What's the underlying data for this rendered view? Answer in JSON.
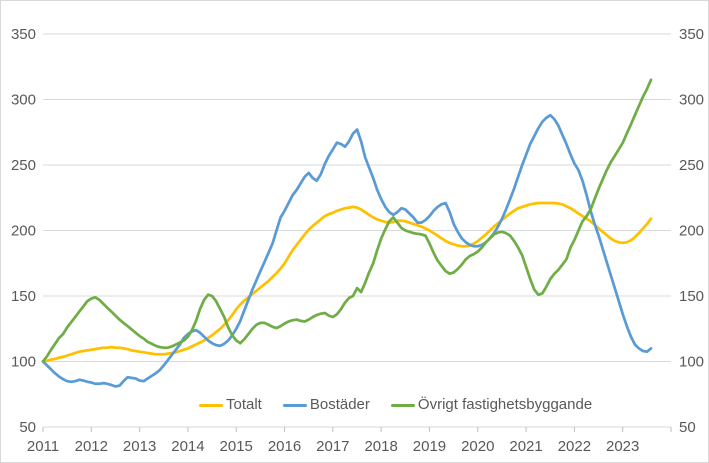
{
  "chart_data": {
    "type": "line",
    "title": "",
    "x_unit": "month",
    "x_range": [
      "2011-01",
      "2023-08"
    ],
    "x_tick_labels": [
      "2011",
      "2012",
      "2013",
      "2014",
      "2015",
      "2016",
      "2017",
      "2018",
      "2019",
      "2020",
      "2021",
      "2022",
      "2023"
    ],
    "y_axis": {
      "min": 50,
      "max": 350,
      "step": 50,
      "tick_labels": [
        "350",
        "300",
        "250",
        "200",
        "150",
        "100",
        "50"
      ],
      "label_sides": "both"
    },
    "grid": true,
    "legend_position": "bottom",
    "series": [
      {
        "name": "Totalt",
        "color": "#FFC000",
        "values": [
          100,
          100.5,
          101.5,
          102,
          103,
          103.5,
          104.5,
          105.5,
          106.5,
          107.5,
          108,
          108.5,
          109,
          109.5,
          110,
          110.5,
          110.5,
          111,
          110.5,
          110.5,
          110,
          109.5,
          108.5,
          108,
          107.5,
          107,
          106.5,
          106,
          105.5,
          105.5,
          105.5,
          106,
          106.5,
          107,
          108,
          109,
          110,
          111.5,
          113,
          114.5,
          116,
          118,
          120,
          122.5,
          125,
          128,
          131.5,
          135.5,
          140,
          143.5,
          146.5,
          149,
          151.5,
          154,
          156.5,
          159,
          161.5,
          164.5,
          167.5,
          171,
          175,
          180,
          185,
          189,
          193,
          197,
          200.5,
          203.5,
          206,
          208.5,
          211,
          212.5,
          213.5,
          215,
          216,
          217,
          217.5,
          218,
          217.5,
          216,
          214,
          212,
          210,
          208.5,
          207.5,
          206.5,
          206,
          206.5,
          207.5,
          207.5,
          207,
          206,
          205,
          204,
          203,
          201.5,
          200,
          198,
          196,
          194,
          192,
          190.5,
          189.5,
          188.5,
          188,
          188,
          188.5,
          190,
          192,
          194.5,
          197,
          200,
          203,
          205.5,
          208,
          210.5,
          213,
          215,
          217,
          218,
          219,
          220,
          220.5,
          221,
          221,
          221,
          221,
          221,
          220.5,
          220,
          218.5,
          217,
          215,
          213,
          211,
          209,
          207,
          204.5,
          201.5,
          199,
          196.5,
          194,
          192,
          191,
          190.5,
          191,
          192.5,
          195,
          198,
          201.5,
          205,
          209
        ]
      },
      {
        "name": "Bostäder",
        "color": "#5B9BD5",
        "values": [
          100,
          97,
          94,
          91,
          88.5,
          86.5,
          85,
          84.5,
          85,
          86,
          85.5,
          84.5,
          84,
          83,
          83,
          83.5,
          83,
          82,
          81,
          81.5,
          85,
          88,
          87.5,
          87,
          85.5,
          85,
          87,
          89,
          91,
          93.5,
          97,
          101,
          105,
          109,
          113,
          118,
          121,
          123,
          124,
          122,
          119,
          116,
          114,
          112.5,
          112,
          113.5,
          116,
          120,
          125,
          131,
          139,
          147,
          155,
          162,
          169,
          176,
          183,
          190,
          200,
          210,
          215,
          221,
          227,
          231,
          236,
          241,
          244,
          240,
          238,
          243,
          251,
          257,
          262,
          267,
          266,
          264,
          268,
          274,
          277,
          268,
          256,
          248,
          240,
          231,
          224,
          218,
          214,
          212,
          214,
          217,
          216,
          213,
          210,
          206,
          206,
          208,
          211,
          215,
          218,
          220,
          221,
          214,
          205,
          199,
          194,
          191,
          189,
          188,
          188,
          189,
          191,
          194,
          198,
          203,
          209,
          216,
          224,
          232,
          241,
          250,
          258,
          266,
          272,
          278,
          283,
          286,
          288,
          285,
          280,
          273,
          266,
          258,
          251,
          246,
          238,
          227,
          215,
          205,
          196,
          186,
          176,
          166,
          156,
          146,
          136,
          127,
          119,
          113,
          110,
          108,
          107.5,
          110
        ]
      },
      {
        "name": "Övrigt fastighetsbyggande",
        "color": "#70AD47",
        "values": [
          100,
          104,
          109,
          113.5,
          118,
          121,
          126,
          130,
          134,
          138,
          142,
          146,
          148,
          149,
          147,
          144,
          141,
          138,
          135,
          132,
          129.5,
          127,
          124.5,
          122,
          119.5,
          117.5,
          115,
          113.5,
          112,
          111,
          110.5,
          110.5,
          111.5,
          113,
          114.5,
          116,
          119,
          124,
          131,
          140,
          147,
          151,
          150,
          146,
          140,
          134,
          126,
          120,
          116,
          114,
          117,
          121,
          125,
          128,
          129.5,
          129.5,
          128,
          126.5,
          125.5,
          127,
          129,
          130.5,
          131.5,
          132,
          131,
          130.5,
          132,
          134,
          135.5,
          136.5,
          137,
          135,
          134,
          136,
          140,
          145,
          148.5,
          150,
          156,
          153,
          160,
          168,
          175,
          185,
          194,
          201,
          207,
          210,
          206,
          202,
          200,
          199,
          198,
          197.5,
          197,
          196,
          190,
          183,
          177,
          173,
          169,
          167,
          168,
          170.5,
          174,
          178,
          180.5,
          182,
          184,
          187,
          191,
          194,
          197,
          198.5,
          199,
          198,
          196,
          192,
          187,
          181,
          172,
          163,
          155,
          151,
          152,
          157,
          163,
          167,
          170,
          174,
          178,
          187,
          193,
          200,
          207,
          211,
          216,
          224,
          232,
          239,
          246,
          252,
          257,
          262,
          267,
          274,
          281,
          288,
          295,
          302,
          308,
          315
        ]
      }
    ]
  },
  "legend": {
    "items": [
      {
        "label": "Totalt",
        "color": "#FFC000"
      },
      {
        "label": "Bostäder",
        "color": "#5B9BD5"
      },
      {
        "label": "Övrigt fastighetsbyggande",
        "color": "#70AD47"
      }
    ]
  },
  "style": {
    "axis_label_color": "#595959",
    "gridline_color": "#d9d9d9",
    "tick_color": "#bfbfbf",
    "background": "#ffffff"
  }
}
